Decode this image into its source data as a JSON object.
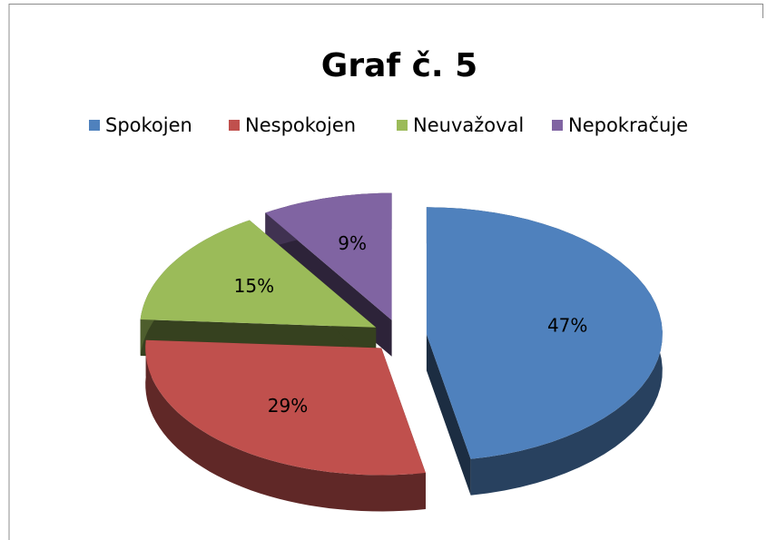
{
  "chart_data": {
    "type": "pie",
    "title": "Graf č. 5",
    "categories": [
      "Spokojen",
      "Nespokojen",
      "Neuvažoval",
      "Nepokračuje"
    ],
    "values": [
      47,
      29,
      15,
      9
    ],
    "value_labels": [
      "47%",
      "29%",
      "15%",
      "9%"
    ],
    "colors": [
      "#4f81bd",
      "#c0504d",
      "#9bbb59",
      "#8064a2"
    ],
    "legend": "top"
  }
}
